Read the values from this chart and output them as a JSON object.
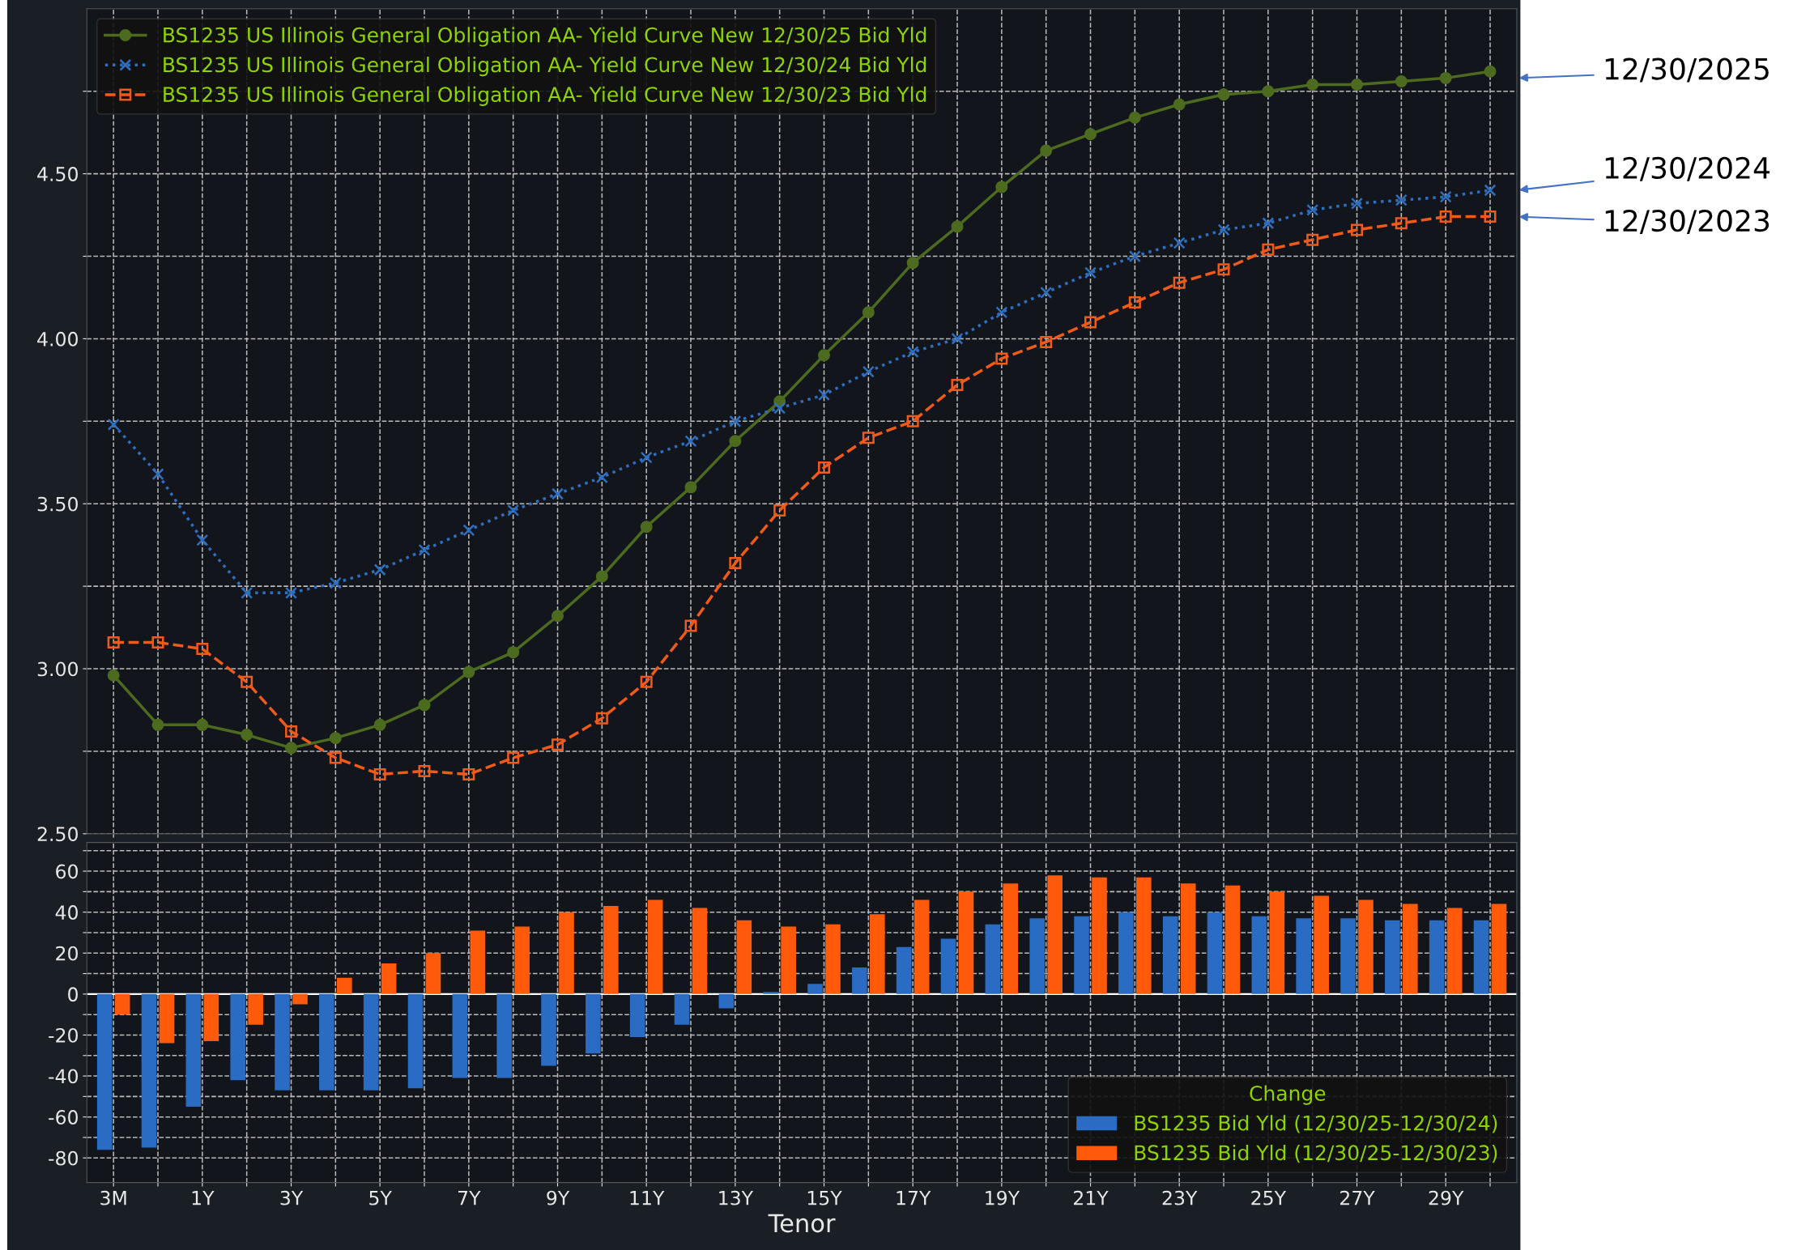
{
  "chart_data": [
    {
      "type": "line",
      "categories": [
        null,
        null,
        null,
        null,
        null,
        null,
        null,
        null,
        null,
        null,
        null,
        null,
        null,
        null,
        null,
        null,
        null,
        null,
        null,
        null,
        null,
        null,
        null,
        null,
        null,
        null,
        null,
        null,
        null,
        null,
        null,
        null
      ],
      "series": [
        {
          "name": "BS1235 US Illinois General Obligation AA- Yield Curve New 12/30/25 Bid Yld",
          "color": "#4d6b1e",
          "marker": "circle",
          "line_style": "solid",
          "values": [
            2.98,
            2.83,
            2.83,
            2.8,
            2.76,
            2.79,
            2.83,
            2.89,
            2.99,
            3.05,
            3.16,
            3.28,
            3.43,
            3.55,
            3.69,
            3.81,
            3.95,
            4.08,
            4.23,
            4.34,
            4.46,
            4.57,
            4.62,
            4.67,
            4.71,
            4.74,
            4.75,
            4.77,
            4.77,
            4.78,
            4.79,
            4.81
          ]
        },
        {
          "name": "BS1235 US Illinois General Obligation AA- Yield Curve New 12/30/24 Bid Yld",
          "color": "#2f6fc0",
          "marker": "cross",
          "line_style": "dotted",
          "values": [
            3.74,
            3.59,
            3.39,
            3.23,
            3.23,
            3.26,
            3.3,
            3.36,
            3.42,
            3.48,
            3.53,
            3.58,
            3.64,
            3.69,
            3.75,
            3.79,
            3.83,
            3.9,
            3.96,
            4.0,
            4.08,
            4.14,
            4.2,
            4.25,
            4.29,
            4.33,
            4.35,
            4.39,
            4.41,
            4.42,
            4.43,
            4.45
          ]
        },
        {
          "name": "BS1235 US Illinois General Obligation AA- Yield Curve New 12/30/23 Bid Yld",
          "color": "#f05a1a",
          "marker": "square",
          "line_style": "dashed",
          "values": [
            3.08,
            3.08,
            3.06,
            2.96,
            2.81,
            2.73,
            2.68,
            2.69,
            2.68,
            2.73,
            2.77,
            2.85,
            2.96,
            3.13,
            3.32,
            3.48,
            3.61,
            3.7,
            3.75,
            3.86,
            3.94,
            3.99,
            4.05,
            4.11,
            4.17,
            4.21,
            4.27,
            4.3,
            4.33,
            4.35,
            4.37,
            4.37
          ]
        }
      ],
      "ylim": [
        2.5,
        5.0
      ],
      "yticks": [
        {
          "value": 2.5,
          "label": "2.50"
        },
        {
          "value": 2.75,
          "label": null
        },
        {
          "value": 3.0,
          "label": "3.00"
        },
        {
          "value": 3.25,
          "label": null
        },
        {
          "value": 3.5,
          "label": "3.50"
        },
        {
          "value": 3.75,
          "label": null
        },
        {
          "value": 4.0,
          "label": "4.00"
        },
        {
          "value": 4.25,
          "label": null
        },
        {
          "value": 4.5,
          "label": "4.50"
        },
        {
          "value": 4.75,
          "label": null
        }
      ],
      "grid": true,
      "legend": "top left",
      "tick_labels": "y",
      "annotations": [
        "12/30/2025",
        "12/30/2024",
        "12/30/2023"
      ]
    },
    {
      "type": "bar",
      "categories": [
        "3M",
        null,
        "1Y",
        null,
        "3Y",
        null,
        "5Y",
        null,
        "7Y",
        null,
        "9Y",
        null,
        "11Y",
        null,
        "13Y",
        null,
        "15Y",
        null,
        "17Y",
        null,
        "19Y",
        null,
        "21Y",
        null,
        "23Y",
        null,
        "25Y",
        null,
        "27Y",
        null,
        "29Y",
        null
      ],
      "legend_title": "Change",
      "xlabel": "Tenor",
      "series": [
        {
          "name": "BS1235 Bid Yld (12/30/25-12/30/24)",
          "color": "#2a6bc4",
          "values": [
            -76,
            -75,
            -55,
            -42,
            -47,
            -47,
            -47,
            -46,
            -41,
            -41,
            -35,
            -29,
            -21,
            -15,
            -7,
            1,
            5,
            13,
            23,
            27,
            34,
            37,
            38,
            40,
            38,
            40,
            38,
            37,
            37,
            36,
            36,
            36
          ]
        },
        {
          "name": "BS1235 Bid Yld (12/30/25-12/30/23)",
          "color": "#ff5a0a",
          "values": [
            -10,
            -24,
            -23,
            -15,
            -5,
            8,
            15,
            20,
            31,
            33,
            40,
            43,
            46,
            42,
            36,
            33,
            34,
            39,
            46,
            50,
            54,
            58,
            57,
            57,
            54,
            53,
            50,
            48,
            46,
            44,
            42,
            44
          ]
        }
      ],
      "ylim": [
        -92,
        74
      ],
      "yticks": [
        -80,
        {
          "value": -70,
          "label": null
        },
        -60,
        {
          "value": -50,
          "label": null
        },
        -40,
        {
          "value": -30,
          "label": null
        },
        -20,
        {
          "value": -10,
          "label": null
        },
        0,
        {
          "value": 10,
          "label": null
        },
        20,
        {
          "value": 30,
          "label": null
        },
        40,
        {
          "value": 50,
          "label": null
        },
        60,
        {
          "value": 70,
          "label": null
        }
      ],
      "grid": true,
      "legend": "bottom right"
    }
  ]
}
